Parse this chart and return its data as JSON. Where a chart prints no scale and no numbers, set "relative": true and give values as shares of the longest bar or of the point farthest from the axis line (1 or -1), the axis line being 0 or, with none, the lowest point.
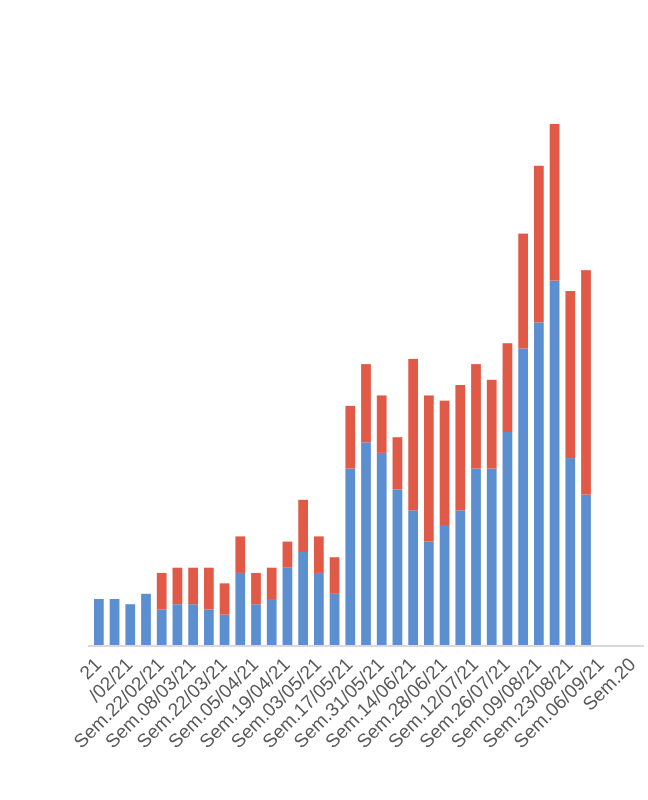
{
  "chart_data": {
    "type": "bar",
    "stacked": true,
    "relative": true,
    "categories": [
      "21",
      null,
      "/02/21",
      null,
      "Sem.22/02/21",
      null,
      "Sem.08/03/21",
      null,
      "Sem.22/03/21",
      null,
      "Sem.05/04/21",
      null,
      "Sem.19/04/21",
      null,
      "Sem.03/05/21",
      null,
      "Sem.17/05/21",
      null,
      "Sem.31/05/21",
      null,
      "Sem.14/06/21",
      null,
      "Sem.28/06/21",
      null,
      "Sem.12/07/21",
      null,
      "Sem.26/07/21",
      null,
      "Sem.09/08/21",
      null,
      "Sem.23/08/21",
      null,
      "Sem.06/09/21",
      null,
      "Sem.20"
    ],
    "series": [
      {
        "color": "#5b8fd0",
        "values": [
          0.09,
          0.09,
          0.08,
          0.1,
          0.07,
          0.08,
          0.08,
          0.07,
          0.06,
          0.14,
          0.08,
          0.09,
          0.15,
          0.18,
          0.14,
          0.1,
          0.34,
          0.39,
          0.37,
          0.3,
          0.26,
          0.2,
          0.23,
          0.26,
          0.34,
          0.34,
          0.41,
          0.57,
          0.62,
          0.7,
          0.36,
          0.29,
          null,
          null,
          null
        ]
      },
      {
        "color": "#e05a47",
        "values": [
          null,
          null,
          null,
          null,
          0.07,
          0.07,
          0.07,
          0.08,
          0.06,
          0.07,
          0.06,
          0.06,
          0.05,
          0.1,
          0.07,
          0.07,
          0.12,
          0.15,
          0.11,
          0.1,
          0.29,
          0.28,
          0.24,
          0.24,
          0.2,
          0.17,
          0.17,
          0.22,
          0.3,
          0.3,
          0.32,
          0.43,
          null,
          null,
          null
        ]
      }
    ]
  }
}
